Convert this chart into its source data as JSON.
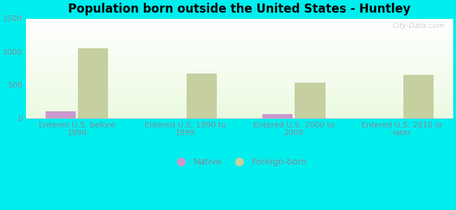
{
  "title": "Population born outside the United States - Huntley",
  "categories": [
    "Entered U.S. before\n1990",
    "Entered U.S. 1990 to\n1999",
    "Entered U.S. 2000 to\n2009",
    "Entered U.S. 2010 or\nlater"
  ],
  "native_values": [
    100,
    0,
    65,
    0
  ],
  "foreign_born_values": [
    1050,
    670,
    530,
    650
  ],
  "native_color": "#cc99cc",
  "foreign_born_color": "#c5cfa0",
  "background_color": "#00eeee",
  "ylim": [
    0,
    1500
  ],
  "yticks": [
    0,
    500,
    1000,
    1500
  ],
  "bar_width": 0.28,
  "watermark": "City-Data.com",
  "legend_labels": [
    "Native",
    "Foreign-born"
  ],
  "tick_label_color": "#888899",
  "title_fontsize": 12,
  "tick_fontsize": 8
}
